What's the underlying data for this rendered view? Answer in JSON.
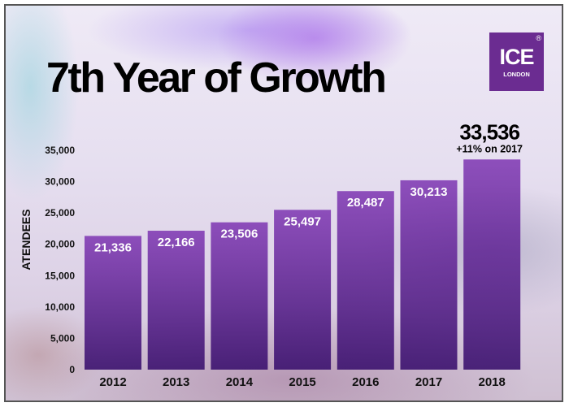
{
  "logo": {
    "text": "ICE",
    "registered": "®",
    "subtitle": "LONDON",
    "color": "#6b2c91"
  },
  "chart_data": {
    "type": "bar",
    "title": "7th Year of Growth",
    "ylabel": "ATENDEES",
    "xlabel": "",
    "ylim": [
      0,
      35000
    ],
    "yticks": [
      0,
      5000,
      10000,
      15000,
      20000,
      25000,
      30000,
      35000
    ],
    "ytick_labels": [
      "0",
      "5,000",
      "10,000",
      "15,000",
      "20,000",
      "25,000",
      "30,000",
      "35,000"
    ],
    "categories": [
      "2012",
      "2013",
      "2014",
      "2015",
      "2016",
      "2017",
      "2018"
    ],
    "values": [
      21336,
      22166,
      23506,
      25497,
      28487,
      30213,
      33536
    ],
    "data_labels": [
      "21,336",
      "22,166",
      "23,506",
      "25,497",
      "28,487",
      "30,213",
      "33,536"
    ],
    "annotation": "+11% on 2017",
    "grid": false,
    "bar_color": "#5a1f8a"
  }
}
